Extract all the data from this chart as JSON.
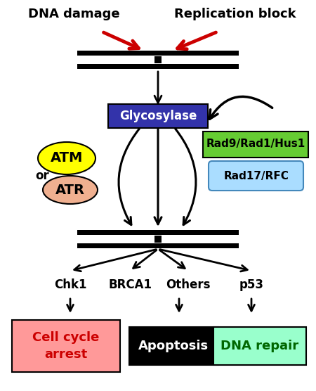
{
  "bg_color": "#ffffff",
  "dna_damage_label": "DNA damage",
  "replication_block_label": "Replication block",
  "glycosylase_label": "Glycosylase",
  "glycosylase_box_color": "#3333aa",
  "glycosylase_text_color": "#ffffff",
  "rad9_label": "Rad9/Rad1/Hus1",
  "rad9_box_color": "#66cc33",
  "rad9_text_color": "#000000",
  "rad17_label": "Rad17/RFC",
  "rad17_box_color": "#aaddff",
  "rad17_text_color": "#000000",
  "atm_label": "ATM",
  "atm_color": "#ffff00",
  "atr_label": "ATR",
  "atr_color": "#f0b090",
  "or_label": "or",
  "kinases": [
    "Chk1",
    "BRCA1",
    "Others",
    "p53"
  ],
  "outcomes": [
    "Cell cycle\narrest",
    "Apoptosis",
    "DNA repair"
  ],
  "outcome_colors": [
    "#ff9999",
    "#000000",
    "#99ffcc"
  ],
  "outcome_text_colors": [
    "#cc0000",
    "#ffffff",
    "#006600"
  ],
  "red_arrow_color": "#cc0000"
}
